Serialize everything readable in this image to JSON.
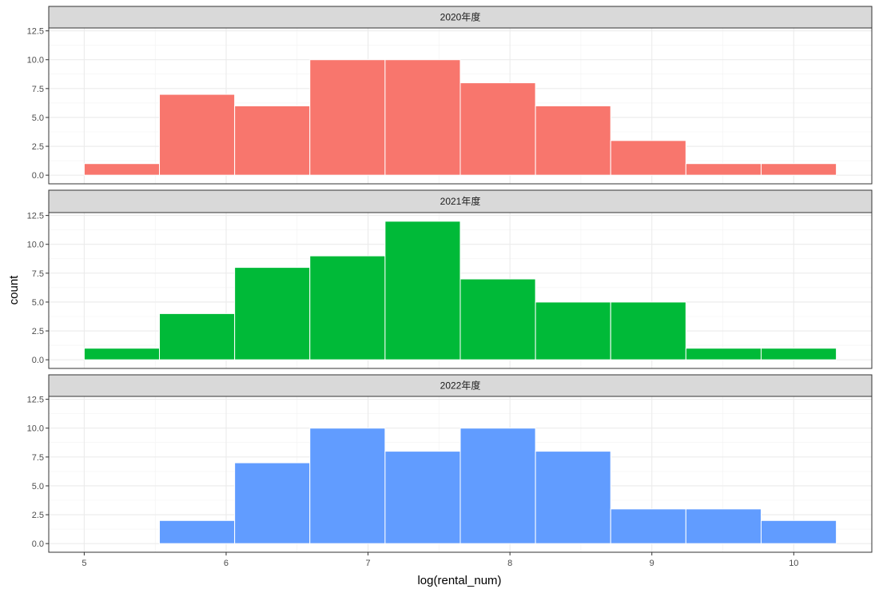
{
  "chart_data": {
    "type": "bar",
    "xlabel": "log(rental_num)",
    "ylabel": "count",
    "xlim": [
      4.75,
      10.55
    ],
    "ylim": [
      -0.75,
      12.75
    ],
    "x_ticks": [
      5,
      6,
      7,
      8,
      9,
      10
    ],
    "x_tick_labels": [
      "5",
      "6",
      "7",
      "8",
      "9",
      "10"
    ],
    "y_ticks": [
      0,
      2.5,
      5,
      7.5,
      10,
      12.5
    ],
    "y_tick_labels": [
      "0.0",
      "2.5",
      "5.0",
      "7.5",
      "10.0",
      "12.5"
    ],
    "grid": true,
    "legend": "none",
    "bin_edges": [
      5.0,
      5.53,
      6.06,
      6.59,
      7.12,
      7.65,
      8.18,
      8.71,
      9.24,
      9.77,
      10.3
    ],
    "series": [
      {
        "name": "2020年度",
        "color": "#F8766D",
        "values": [
          1,
          7,
          6,
          10,
          10,
          8,
          6,
          3,
          1,
          1
        ]
      },
      {
        "name": "2021年度",
        "color": "#00BA38",
        "values": [
          1,
          4,
          8,
          9,
          12,
          7,
          5,
          5,
          1,
          1
        ]
      },
      {
        "name": "2022年度",
        "color": "#619CFF",
        "values": [
          0,
          2,
          7,
          10,
          8,
          10,
          8,
          3,
          3,
          2
        ]
      }
    ]
  }
}
